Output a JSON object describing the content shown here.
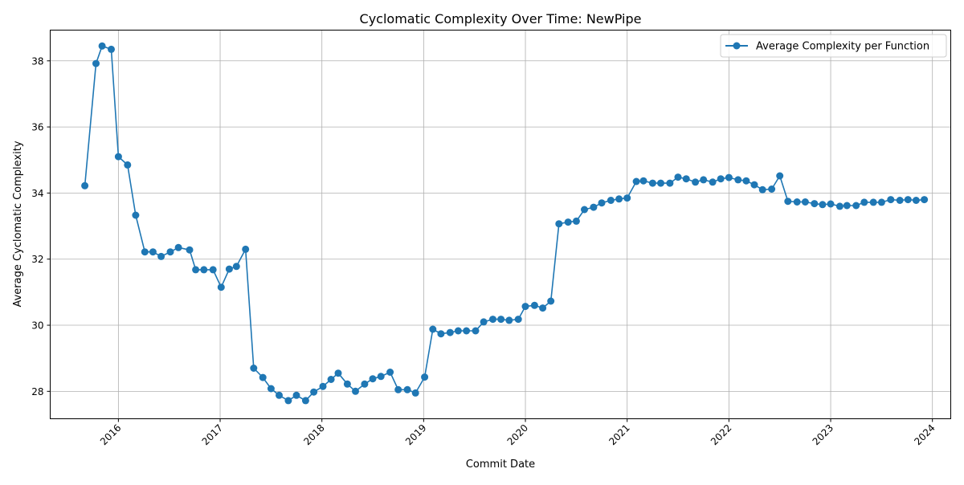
{
  "chart_data": {
    "type": "line",
    "title": "Cyclomatic Complexity Over Time: NewPipe",
    "xlabel": "Commit Date",
    "ylabel": "Average Cyclomatic Complexity",
    "xlim": [
      2015.33,
      2024.18
    ],
    "ylim": [
      27.17,
      38.93
    ],
    "xticks": [
      {
        "value": 2016,
        "label": "2016"
      },
      {
        "value": 2017,
        "label": "2017"
      },
      {
        "value": 2018,
        "label": "2018"
      },
      {
        "value": 2019,
        "label": "2019"
      },
      {
        "value": 2020,
        "label": "2020"
      },
      {
        "value": 2021,
        "label": "2021"
      },
      {
        "value": 2022,
        "label": "2022"
      },
      {
        "value": 2023,
        "label": "2023"
      },
      {
        "value": 2024,
        "label": "2024"
      }
    ],
    "yticks": [
      {
        "value": 28,
        "label": "28"
      },
      {
        "value": 30,
        "label": "30"
      },
      {
        "value": 32,
        "label": "32"
      },
      {
        "value": 34,
        "label": "34"
      },
      {
        "value": 36,
        "label": "36"
      },
      {
        "value": 38,
        "label": "38"
      }
    ],
    "grid": true,
    "legend_position": "top-right",
    "series": [
      {
        "name": "Average Complexity per Function",
        "color": "#1f77b4",
        "marker": "circle",
        "points": [
          [
            2015.67,
            34.22
          ],
          [
            2015.78,
            37.92
          ],
          [
            2015.84,
            38.45
          ],
          [
            2015.93,
            38.35
          ],
          [
            2016.0,
            35.1
          ],
          [
            2016.09,
            34.85
          ],
          [
            2016.17,
            33.33
          ],
          [
            2016.26,
            32.22
          ],
          [
            2016.34,
            32.22
          ],
          [
            2016.42,
            32.08
          ],
          [
            2016.51,
            32.22
          ],
          [
            2016.59,
            32.35
          ],
          [
            2016.7,
            32.28
          ],
          [
            2016.76,
            31.68
          ],
          [
            2016.84,
            31.68
          ],
          [
            2016.93,
            31.68
          ],
          [
            2017.01,
            31.15
          ],
          [
            2017.09,
            31.7
          ],
          [
            2017.16,
            31.78
          ],
          [
            2017.25,
            32.3
          ],
          [
            2017.33,
            28.7
          ],
          [
            2017.42,
            28.42
          ],
          [
            2017.5,
            28.08
          ],
          [
            2017.58,
            27.88
          ],
          [
            2017.67,
            27.72
          ],
          [
            2017.75,
            27.88
          ],
          [
            2017.84,
            27.72
          ],
          [
            2017.92,
            27.98
          ],
          [
            2018.01,
            28.15
          ],
          [
            2018.09,
            28.36
          ],
          [
            2018.16,
            28.55
          ],
          [
            2018.25,
            28.22
          ],
          [
            2018.33,
            28.0
          ],
          [
            2018.42,
            28.22
          ],
          [
            2018.5,
            28.38
          ],
          [
            2018.58,
            28.45
          ],
          [
            2018.67,
            28.58
          ],
          [
            2018.75,
            28.05
          ],
          [
            2018.84,
            28.05
          ],
          [
            2018.92,
            27.95
          ],
          [
            2019.01,
            28.43
          ],
          [
            2019.09,
            29.88
          ],
          [
            2019.17,
            29.74
          ],
          [
            2019.26,
            29.78
          ],
          [
            2019.34,
            29.83
          ],
          [
            2019.42,
            29.83
          ],
          [
            2019.51,
            29.83
          ],
          [
            2019.59,
            30.1
          ],
          [
            2019.68,
            30.18
          ],
          [
            2019.76,
            30.18
          ],
          [
            2019.84,
            30.15
          ],
          [
            2019.93,
            30.18
          ],
          [
            2020.0,
            30.57
          ],
          [
            2020.09,
            30.6
          ],
          [
            2020.17,
            30.52
          ],
          [
            2020.25,
            30.73
          ],
          [
            2020.33,
            33.07
          ],
          [
            2020.42,
            33.12
          ],
          [
            2020.5,
            33.15
          ],
          [
            2020.58,
            33.5
          ],
          [
            2020.67,
            33.57
          ],
          [
            2020.75,
            33.7
          ],
          [
            2020.84,
            33.78
          ],
          [
            2020.92,
            33.82
          ],
          [
            2021.0,
            33.85
          ],
          [
            2021.09,
            34.35
          ],
          [
            2021.16,
            34.37
          ],
          [
            2021.25,
            34.3
          ],
          [
            2021.33,
            34.3
          ],
          [
            2021.42,
            34.3
          ],
          [
            2021.5,
            34.48
          ],
          [
            2021.58,
            34.43
          ],
          [
            2021.67,
            34.33
          ],
          [
            2021.75,
            34.4
          ],
          [
            2021.84,
            34.33
          ],
          [
            2021.92,
            34.43
          ],
          [
            2022.0,
            34.47
          ],
          [
            2022.09,
            34.4
          ],
          [
            2022.17,
            34.37
          ],
          [
            2022.25,
            34.25
          ],
          [
            2022.33,
            34.1
          ],
          [
            2022.42,
            34.12
          ],
          [
            2022.5,
            34.52
          ],
          [
            2022.58,
            33.75
          ],
          [
            2022.67,
            33.73
          ],
          [
            2022.75,
            33.73
          ],
          [
            2022.84,
            33.68
          ],
          [
            2022.92,
            33.65
          ],
          [
            2023.0,
            33.67
          ],
          [
            2023.09,
            33.6
          ],
          [
            2023.16,
            33.62
          ],
          [
            2023.25,
            33.62
          ],
          [
            2023.33,
            33.72
          ],
          [
            2023.42,
            33.72
          ],
          [
            2023.5,
            33.72
          ],
          [
            2023.59,
            33.8
          ],
          [
            2023.68,
            33.78
          ],
          [
            2023.76,
            33.8
          ],
          [
            2023.84,
            33.78
          ],
          [
            2023.92,
            33.8
          ]
        ]
      }
    ]
  }
}
